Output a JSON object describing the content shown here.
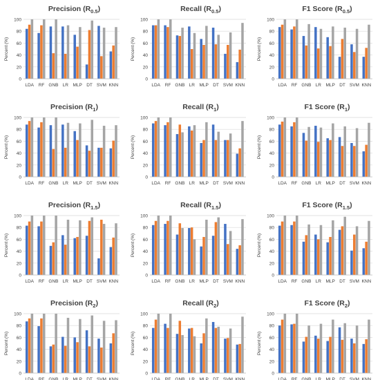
{
  "colors": {
    "series1": "#4472c4",
    "series2": "#ed7d31",
    "series3": "#a5a5a5",
    "grid": "#d9d9d9",
    "text": "#404040"
  },
  "chart_data": [
    {
      "type": "bar",
      "title": "Precision",
      "title_sub": "0.5",
      "ylabel": "Percent (%)",
      "ylim": [
        0,
        100
      ],
      "yticks": [
        0,
        20,
        40,
        60,
        80,
        100
      ],
      "grid": true,
      "categories": [
        "LDA",
        "RF",
        "GNB",
        "LR",
        "MLP",
        "DT",
        "SVM",
        "KNN"
      ],
      "series": [
        {
          "values": [
            84,
            77,
            88,
            88,
            74,
            24,
            89,
            46
          ]
        },
        {
          "values": [
            91,
            90,
            43,
            42,
            54,
            82,
            38,
            56
          ]
        },
        {
          "values": [
            100,
            100,
            100,
            90,
            87,
            98,
            86,
            87
          ]
        }
      ]
    },
    {
      "type": "bar",
      "title": "Recall",
      "title_sub": "0.5",
      "ylabel": "Percent (%)",
      "ylim": [
        0,
        100
      ],
      "yticks": [
        0,
        20,
        40,
        60,
        80,
        100
      ],
      "grid": true,
      "categories": [
        "LDA",
        "RF",
        "GNB",
        "LR",
        "MLP",
        "DT",
        "SVM",
        "KNN"
      ],
      "series": [
        {
          "values": [
            90,
            90,
            73,
            88,
            67,
            86,
            42,
            28
          ]
        },
        {
          "values": [
            90,
            87,
            72,
            50,
            57,
            58,
            57,
            49
          ]
        },
        {
          "values": [
            100,
            100,
            86,
            77,
            89,
            74,
            78,
            94
          ]
        }
      ]
    },
    {
      "type": "bar",
      "title": "F1 Score",
      "title_sub": "0.5",
      "ylabel": "Percent (%)",
      "ylim": [
        0,
        100
      ],
      "yticks": [
        0,
        20,
        40,
        60,
        80,
        100
      ],
      "grid": true,
      "categories": [
        "LDA",
        "RF",
        "GNB",
        "LR",
        "MLP",
        "DT",
        "SVM",
        "KNN"
      ],
      "series": [
        {
          "values": [
            87,
            83,
            72,
            87,
            70,
            37,
            58,
            37
          ]
        },
        {
          "values": [
            91,
            88,
            56,
            51,
            55,
            67,
            45,
            52
          ]
        },
        {
          "values": [
            100,
            100,
            92,
            84,
            88,
            86,
            84,
            91
          ]
        }
      ]
    },
    {
      "type": "bar",
      "title": "Precision",
      "title_sub": "1",
      "ylabel": "Percent (%)",
      "ylim": [
        0,
        100
      ],
      "yticks": [
        0,
        20,
        40,
        60,
        80,
        100
      ],
      "grid": true,
      "categories": [
        "LDA",
        "RF",
        "GNB",
        "LR",
        "MLP",
        "DT",
        "SVM",
        "KNN"
      ],
      "series": [
        {
          "values": [
            88,
            83,
            87,
            88,
            77,
            53,
            49,
            48
          ]
        },
        {
          "values": [
            94,
            92,
            47,
            49,
            62,
            44,
            49,
            61
          ]
        },
        {
          "values": [
            100,
            100,
            100,
            91,
            90,
            96,
            86,
            87
          ]
        }
      ]
    },
    {
      "type": "bar",
      "title": "Recall",
      "title_sub": "1",
      "ylabel": "Percent (%)",
      "ylim": [
        0,
        100
      ],
      "yticks": [
        0,
        20,
        40,
        60,
        80,
        100
      ],
      "grid": true,
      "categories": [
        "LDA",
        "RF",
        "GNB",
        "LR",
        "MLP",
        "DT",
        "SVM",
        "KNN"
      ],
      "series": [
        {
          "values": [
            90,
            87,
            72,
            85,
            57,
            88,
            62,
            39
          ]
        },
        {
          "values": [
            94,
            92,
            88,
            78,
            62,
            62,
            62,
            48
          ]
        },
        {
          "values": [
            100,
            100,
            75,
            87,
            92,
            76,
            73,
            94
          ]
        }
      ]
    },
    {
      "type": "bar",
      "title": "F1 Score",
      "title_sub": "1",
      "ylabel": "Percent (%)",
      "ylim": [
        0,
        100
      ],
      "yticks": [
        0,
        20,
        40,
        60,
        80,
        100
      ],
      "grid": true,
      "categories": [
        "LDA",
        "RF",
        "GNB",
        "LR",
        "MLP",
        "DT",
        "SVM",
        "KNN"
      ],
      "series": [
        {
          "values": [
            88,
            85,
            74,
            86,
            65,
            67,
            57,
            43
          ]
        },
        {
          "values": [
            93,
            92,
            61,
            59,
            62,
            52,
            52,
            54
          ]
        },
        {
          "values": [
            100,
            100,
            84,
            83,
            90,
            85,
            82,
            91
          ]
        }
      ]
    },
    {
      "type": "bar",
      "title": "Precision",
      "title_sub": "1.5",
      "ylabel": "Percent (%)",
      "ylim": [
        0,
        100
      ],
      "yticks": [
        0,
        20,
        40,
        60,
        80,
        100
      ],
      "grid": true,
      "categories": [
        "LDA",
        "RF",
        "GNB",
        "LR",
        "MLP",
        "DT",
        "SVM",
        "KNN"
      ],
      "series": [
        {
          "values": [
            83,
            82,
            49,
            67,
            62,
            66,
            28,
            47
          ]
        },
        {
          "values": [
            90,
            90,
            55,
            51,
            64,
            91,
            93,
            63
          ]
        },
        {
          "values": [
            100,
            100,
            100,
            93,
            92,
            97,
            86,
            87
          ]
        }
      ]
    },
    {
      "type": "bar",
      "title": "Recall",
      "title_sub": "1.5",
      "ylabel": "Percent (%)",
      "ylim": [
        0,
        100
      ],
      "yticks": [
        0,
        20,
        40,
        60,
        80,
        100
      ],
      "grid": true,
      "categories": [
        "LDA",
        "RF",
        "GNB",
        "LR",
        "MLP",
        "DT",
        "SVM",
        "KNN"
      ],
      "series": [
        {
          "values": [
            84,
            86,
            68,
            79,
            48,
            66,
            86,
            44
          ]
        },
        {
          "values": [
            91,
            91,
            87,
            80,
            64,
            89,
            52,
            50
          ]
        },
        {
          "values": [
            100,
            100,
            79,
            60,
            93,
            97,
            74,
            94
          ]
        }
      ]
    },
    {
      "type": "bar",
      "title": "F1 Score",
      "title_sub": "1.5",
      "ylabel": "Percent (%)",
      "ylim": [
        0,
        100
      ],
      "yticks": [
        0,
        20,
        40,
        60,
        80,
        100
      ],
      "grid": true,
      "categories": [
        "LDA",
        "RF",
        "GNB",
        "LR",
        "MLP",
        "DT",
        "SVM",
        "KNN"
      ],
      "series": [
        {
          "values": [
            83,
            84,
            56,
            68,
            55,
            76,
            41,
            45
          ]
        },
        {
          "values": [
            90,
            90,
            67,
            60,
            64,
            82,
            68,
            56
          ]
        },
        {
          "values": [
            100,
            100,
            85,
            84,
            92,
            98,
            82,
            91
          ]
        }
      ]
    },
    {
      "type": "bar",
      "title": "Precision",
      "title_sub": "2",
      "ylabel": "Percent (%)",
      "ylim": [
        0,
        100
      ],
      "yticks": [
        0,
        20,
        40,
        60,
        80,
        100
      ],
      "grid": true,
      "categories": [
        "LDA",
        "RF",
        "GNB",
        "LR",
        "MLP",
        "DT",
        "SVM",
        "KNN"
      ],
      "series": [
        {
          "values": [
            87,
            79,
            45,
            61,
            60,
            72,
            58,
            50
          ]
        },
        {
          "values": [
            92,
            92,
            48,
            46,
            52,
            45,
            43,
            67
          ]
        },
        {
          "values": [
            100,
            100,
            100,
            93,
            91,
            97,
            88,
            89
          ]
        }
      ]
    },
    {
      "type": "bar",
      "title": "Recall",
      "title_sub": "2",
      "ylabel": "Percent (%)",
      "ylim": [
        0,
        100
      ],
      "yticks": [
        0,
        20,
        40,
        60,
        80,
        100
      ],
      "grid": true,
      "categories": [
        "LDA",
        "RF",
        "GNB",
        "LR",
        "MLP",
        "DT",
        "SVM",
        "KNN"
      ],
      "series": [
        {
          "values": [
            76,
            83,
            66,
            75,
            50,
            86,
            58,
            48
          ]
        },
        {
          "values": [
            90,
            76,
            88,
            76,
            67,
            76,
            59,
            49
          ]
        },
        {
          "values": [
            100,
            100,
            64,
            62,
            92,
            78,
            75,
            95
          ]
        }
      ]
    },
    {
      "type": "bar",
      "title": "F1 Score",
      "title_sub": "2",
      "ylabel": "Percent (%)",
      "ylim": [
        0,
        100
      ],
      "yticks": [
        0,
        20,
        40,
        60,
        80,
        100
      ],
      "grid": true,
      "categories": [
        "LDA",
        "RF",
        "GNB",
        "LR",
        "MLP",
        "DT",
        "SVM",
        "KNN"
      ],
      "series": [
        {
          "values": [
            80,
            82,
            53,
            63,
            54,
            77,
            58,
            49
          ]
        },
        {
          "values": [
            90,
            83,
            61,
            58,
            61,
            56,
            50,
            57
          ]
        },
        {
          "values": [
            100,
            100,
            80,
            83,
            90,
            84,
            80,
            90
          ]
        }
      ]
    }
  ]
}
